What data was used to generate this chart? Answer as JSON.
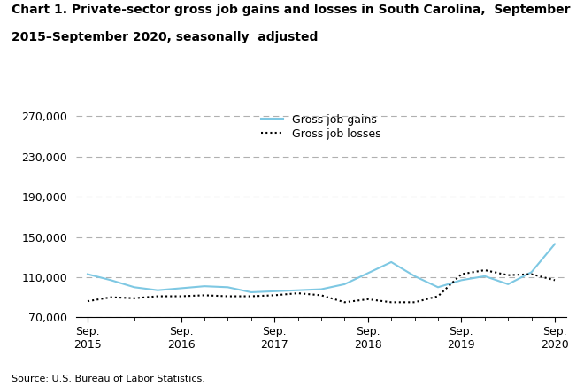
{
  "title_line1": "Chart 1. Private-sector gross job gains and losses in South Carolina,  September",
  "title_line2": "2015–September 2020, seasonally  adjusted",
  "source": "Source: U.S. Bureau of Labor Statistics.",
  "gains": [
    113000,
    107000,
    100000,
    97000,
    99000,
    101000,
    100000,
    95000,
    96000,
    97000,
    98000,
    103000,
    114000,
    125000,
    111000,
    100000,
    107000,
    111000,
    103000,
    115000,
    143000
  ],
  "losses": [
    86000,
    90000,
    89000,
    91000,
    91000,
    92000,
    91000,
    91000,
    92000,
    94000,
    92000,
    85000,
    88000,
    85000,
    85000,
    91000,
    113000,
    117000,
    112000,
    113000,
    107000
  ],
  "n_points": 21,
  "x_ticks_pos": [
    0,
    4,
    8,
    12,
    16,
    20
  ],
  "x_tick_labels": [
    "Sep.\n2015",
    "Sep.\n2016",
    "Sep.\n2017",
    "Sep.\n2018",
    "Sep.\n2019",
    "Sep.\n2020"
  ],
  "y_ticks": [
    70000,
    110000,
    150000,
    190000,
    230000,
    270000
  ],
  "y_tick_labels": [
    "70,000",
    "110,000",
    "150,000",
    "190,000",
    "230,000",
    "270,000"
  ],
  "ylim": [
    70000,
    278000
  ],
  "xlim": [
    -0.5,
    20.5
  ],
  "gains_color": "#7ec8e3",
  "losses_color": "#000000",
  "grid_color": "#b0b0b0",
  "bg_color": "#ffffff",
  "title_fontsize": 10,
  "label_fontsize": 9,
  "tick_fontsize": 9,
  "source_fontsize": 8
}
